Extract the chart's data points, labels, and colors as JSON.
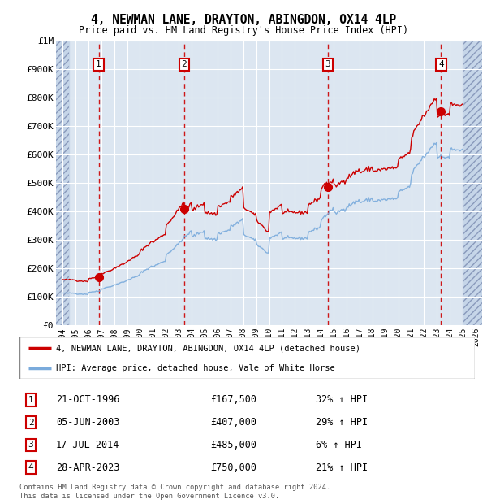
{
  "title": "4, NEWMAN LANE, DRAYTON, ABINGDON, OX14 4LP",
  "subtitle": "Price paid vs. HM Land Registry's House Price Index (HPI)",
  "background_color": "#ffffff",
  "plot_bg_color": "#dce6f1",
  "hatch_color": "#c5d5e8",
  "grid_color": "#ffffff",
  "ylim": [
    0,
    1000000
  ],
  "yticks": [
    0,
    100000,
    200000,
    300000,
    400000,
    500000,
    600000,
    700000,
    800000,
    900000,
    1000000
  ],
  "ytick_labels": [
    "£0",
    "£100K",
    "£200K",
    "£300K",
    "£400K",
    "£500K",
    "£600K",
    "£700K",
    "£800K",
    "£900K",
    "£1M"
  ],
  "xlim_start": 1993.5,
  "xlim_end": 2026.5,
  "hatch_left_end": 1994.5,
  "hatch_right_start": 2025.0,
  "xticks": [
    1994,
    1995,
    1996,
    1997,
    1998,
    1999,
    2000,
    2001,
    2002,
    2003,
    2004,
    2005,
    2006,
    2007,
    2008,
    2009,
    2010,
    2011,
    2012,
    2013,
    2014,
    2015,
    2016,
    2017,
    2018,
    2019,
    2020,
    2021,
    2022,
    2023,
    2024,
    2025,
    2026
  ],
  "sales": [
    {
      "num": 1,
      "date": "21-OCT-1996",
      "year": 1996.8,
      "price": 167500,
      "pct": "32%",
      "dir": "↑"
    },
    {
      "num": 2,
      "date": "05-JUN-2003",
      "year": 2003.43,
      "price": 407000,
      "pct": "29%",
      "dir": "↑"
    },
    {
      "num": 3,
      "date": "17-JUL-2014",
      "year": 2014.54,
      "price": 485000,
      "pct": "6%",
      "dir": "↑"
    },
    {
      "num": 4,
      "date": "28-APR-2023",
      "year": 2023.32,
      "price": 750000,
      "pct": "21%",
      "dir": "↑"
    }
  ],
  "sale_color": "#cc0000",
  "hpi_color": "#7aabdc",
  "legend_label_red": "4, NEWMAN LANE, DRAYTON, ABINGDON, OX14 4LP (detached house)",
  "legend_label_blue": "HPI: Average price, detached house, Vale of White Horse",
  "footer": "Contains HM Land Registry data © Crown copyright and database right 2024.\nThis data is licensed under the Open Government Licence v3.0."
}
